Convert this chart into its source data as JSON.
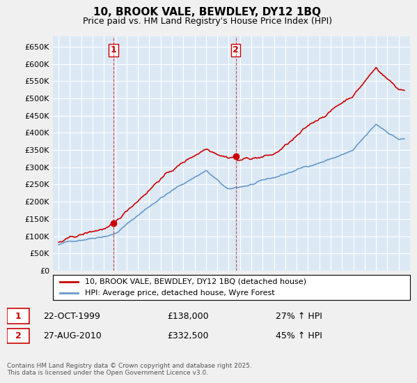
{
  "title": "10, BROOK VALE, BEWDLEY, DY12 1BQ",
  "subtitle": "Price paid vs. HM Land Registry's House Price Index (HPI)",
  "background_color": "#dce9f5",
  "plot_background": "#dce9f5",
  "red_color": "#cc0000",
  "blue_color": "#6699cc",
  "legend_label_red": "10, BROOK VALE, BEWDLEY, DY12 1BQ (detached house)",
  "legend_label_blue": "HPI: Average price, detached house, Wyre Forest",
  "sale1_date": "22-OCT-1999",
  "sale1_price": 138000,
  "sale1_hpi": "27% ↑ HPI",
  "sale2_date": "27-AUG-2010",
  "sale2_price": 332500,
  "sale2_hpi": "45% ↑ HPI",
  "footer": "Contains HM Land Registry data © Crown copyright and database right 2025.\nThis data is licensed under the Open Government Licence v3.0.",
  "ylim": [
    0,
    680000
  ],
  "yticks": [
    0,
    50000,
    100000,
    150000,
    200000,
    250000,
    300000,
    350000,
    400000,
    450000,
    500000,
    550000,
    600000,
    650000
  ],
  "ytick_labels": [
    "£0",
    "£50K",
    "£100K",
    "£150K",
    "£200K",
    "£250K",
    "£300K",
    "£350K",
    "£400K",
    "£450K",
    "£500K",
    "£550K",
    "£600K",
    "£650K"
  ]
}
